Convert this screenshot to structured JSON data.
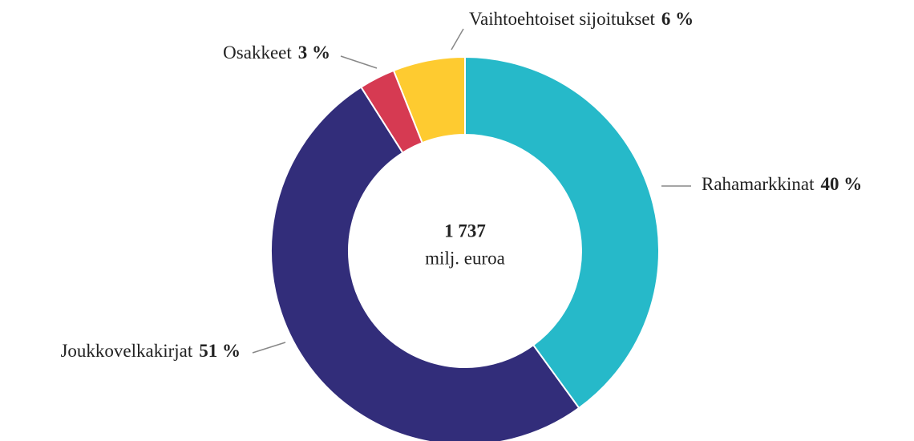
{
  "chart_data": {
    "type": "donut",
    "center_label": [
      "1 737",
      "milj. euroa"
    ],
    "categories": [
      "Rahamarkkinat",
      "Joukkovelkakirjat",
      "Osakkeet",
      "Vaihtoehtoiset sijoitukset"
    ],
    "values": [
      40,
      51,
      3,
      6
    ],
    "value_labels": [
      "40 %",
      "51 %",
      "3 %",
      "6 %"
    ],
    "colors": [
      "#26b9c9",
      "#322d7a",
      "#d63a52",
      "#fecb30"
    ]
  }
}
